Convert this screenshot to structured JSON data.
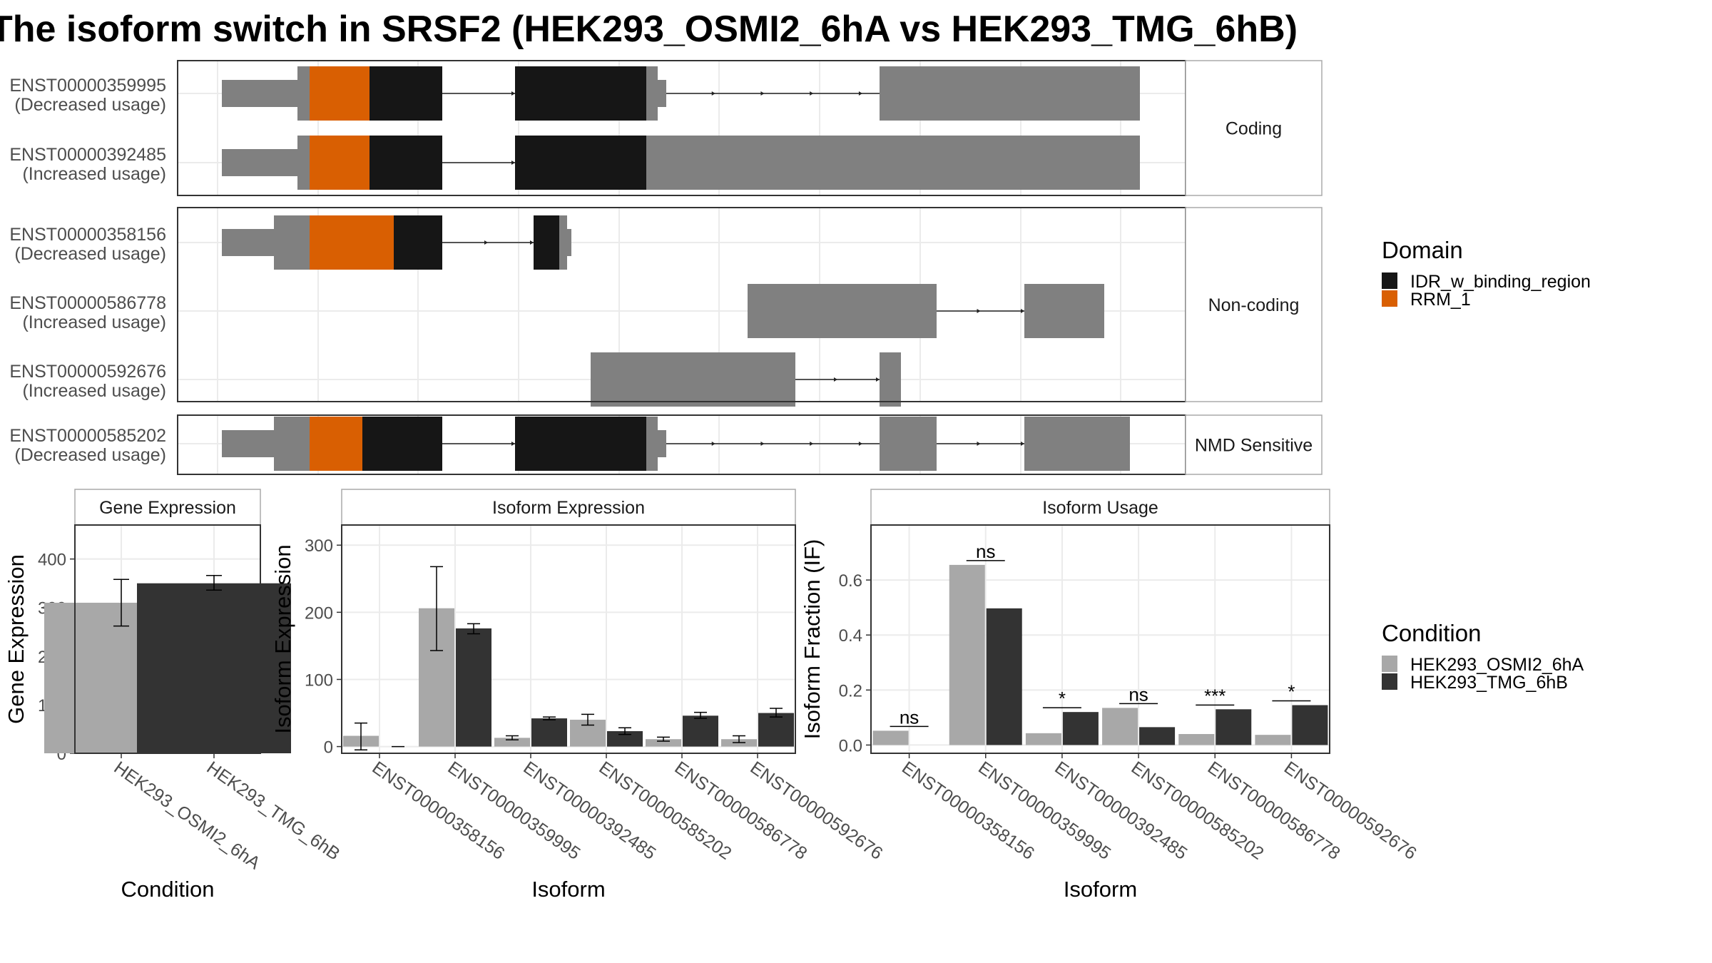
{
  "title": "The isoform switch in SRSF2 (HEK293_OSMI2_6hA vs HEK293_TMG_6hB)",
  "colors": {
    "idr": "#161616",
    "rrm": "#D95F02",
    "exon": "#808080",
    "cond_a": "#A8A8A8",
    "cond_b": "#333333",
    "grid": "#EBEBEB",
    "strip": "#FFFFFF"
  },
  "facets": [
    {
      "label": "Coding",
      "isoforms": [
        {
          "id": "ENST00000359995",
          "usage": "(Decreased usage)"
        },
        {
          "id": "ENST00000392485",
          "usage": "(Increased usage)"
        }
      ]
    },
    {
      "label": "Non-coding",
      "isoforms": [
        {
          "id": "ENST00000358156",
          "usage": "(Decreased usage)"
        },
        {
          "id": "ENST00000586778",
          "usage": "(Increased usage)"
        },
        {
          "id": "ENST00000592676",
          "usage": "(Increased usage)"
        }
      ]
    },
    {
      "label": "NMD Sensitive",
      "isoforms": [
        {
          "id": "ENST00000585202",
          "usage": "(Decreased usage)"
        }
      ]
    }
  ],
  "domain_legend": {
    "title": "Domain",
    "items": [
      {
        "label": "IDR_w_binding_region",
        "color": "#161616"
      },
      {
        "label": "RRM_1",
        "color": "#D95F02"
      }
    ]
  },
  "condition_legend": {
    "title": "Condition",
    "items": [
      {
        "label": "HEK293_OSMI2_6hA",
        "color": "#A8A8A8"
      },
      {
        "label": "HEK293_TMG_6hB",
        "color": "#333333"
      }
    ]
  },
  "chart_data": [
    {
      "type": "bar",
      "title": "Gene Expression",
      "xlabel": "Condition",
      "ylabel": "Gene Expression",
      "ylim": [
        0,
        470
      ],
      "yticks": [
        0,
        100,
        200,
        300,
        400
      ],
      "categories": [
        "HEK293_OSMI2_6hA",
        "HEK293_TMG_6hB"
      ],
      "values": [
        310,
        350
      ],
      "errors": [
        [
          262,
          358
        ],
        [
          336,
          366
        ]
      ]
    },
    {
      "type": "bar",
      "title": "Isoform Expression",
      "xlabel": "Isoform",
      "ylabel": "Isoform Expression",
      "ylim": [
        -10,
        330
      ],
      "yticks": [
        0,
        100,
        200,
        300
      ],
      "categories": [
        "ENST00000358156",
        "ENST00000359995",
        "ENST00000392485",
        "ENST00000585202",
        "ENST00000586778",
        "ENST00000592676"
      ],
      "series": [
        {
          "name": "HEK293_OSMI2_6hA",
          "values": [
            16,
            206,
            13,
            40,
            11,
            11
          ],
          "errors": [
            [
              -5,
              35
            ],
            [
              143,
              268
            ],
            [
              10,
              16
            ],
            [
              32,
              48
            ],
            [
              8,
              14
            ],
            [
              6,
              16
            ]
          ]
        },
        {
          "name": "HEK293_TMG_6hB",
          "values": [
            0,
            176,
            42,
            23,
            46,
            50
          ],
          "errors": [
            [
              0,
              0
            ],
            [
              168,
              183
            ],
            [
              40,
              44
            ],
            [
              18,
              28
            ],
            [
              42,
              51
            ],
            [
              44,
              57
            ]
          ]
        }
      ]
    },
    {
      "type": "bar",
      "title": "Isoform Usage",
      "xlabel": "Isoform",
      "ylabel": "Isoform Fraction (IF)",
      "ylim": [
        -0.03,
        0.8
      ],
      "yticks": [
        0.0,
        0.2,
        0.4,
        0.6
      ],
      "yticklabels": [
        "0.0",
        "0.2",
        "0.4",
        "0.6"
      ],
      "categories": [
        "ENST00000358156",
        "ENST00000359995",
        "ENST00000392485",
        "ENST00000585202",
        "ENST00000586778",
        "ENST00000592676"
      ],
      "series": [
        {
          "name": "HEK293_OSMI2_6hA",
          "values": [
            0.052,
            0.655,
            0.043,
            0.135,
            0.04,
            0.037
          ]
        },
        {
          "name": "HEK293_TMG_6hB",
          "values": [
            0.0,
            0.497,
            0.12,
            0.065,
            0.13,
            0.145
          ]
        }
      ],
      "annotations": [
        "ns",
        "ns",
        "*",
        "ns",
        "***",
        "*"
      ]
    }
  ]
}
